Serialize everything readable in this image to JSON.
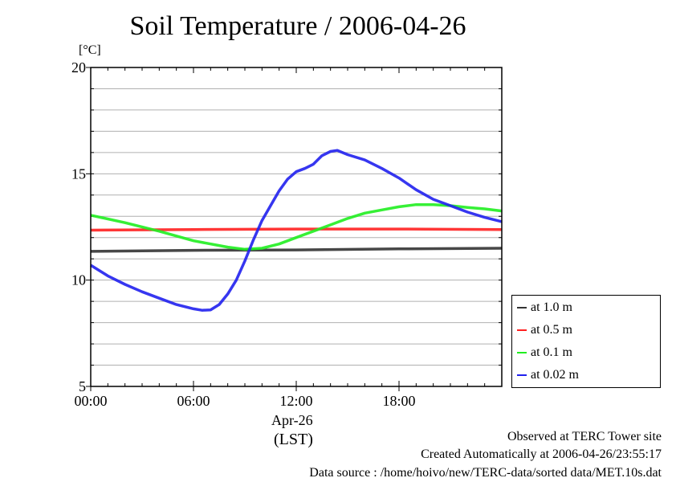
{
  "chart_data": {
    "type": "line",
    "title": "Soil Temperature / 2006-04-26",
    "ylabel": "[°C]",
    "xlabel": "(LST)",
    "date_label": "Apr-26",
    "xlim": [
      0,
      24
    ],
    "ylim": [
      5,
      20
    ],
    "x_ticks": [
      {
        "v": 0,
        "label": "00:00"
      },
      {
        "v": 6,
        "label": "06:00"
      },
      {
        "v": 12,
        "label": "12:00"
      },
      {
        "v": 18,
        "label": "18:00"
      }
    ],
    "y_ticks": [
      {
        "v": 5,
        "label": "5"
      },
      {
        "v": 10,
        "label": "10"
      },
      {
        "v": 15,
        "label": "15"
      },
      {
        "v": 20,
        "label": "20"
      }
    ],
    "grid": true,
    "legend_position": "right-bottom-outside",
    "series": [
      {
        "name": "at 1.0 m",
        "color": "#333333",
        "x": [
          0,
          6,
          12,
          18,
          24
        ],
        "y": [
          11.35,
          11.4,
          11.42,
          11.47,
          11.5
        ]
      },
      {
        "name": "at 0.5 m",
        "color": "#ff2020",
        "x": [
          0,
          6,
          12,
          18,
          24
        ],
        "y": [
          12.35,
          12.38,
          12.4,
          12.4,
          12.38
        ]
      },
      {
        "name": "at 0.1 m",
        "color": "#20ee20",
        "x": [
          0,
          2,
          4,
          6,
          8,
          9,
          10,
          11,
          12,
          13,
          14,
          15,
          16,
          17,
          18,
          19,
          20,
          21,
          22,
          23,
          24
        ],
        "y": [
          13.05,
          12.7,
          12.3,
          11.85,
          11.55,
          11.45,
          11.5,
          11.7,
          12.0,
          12.3,
          12.6,
          12.9,
          13.15,
          13.3,
          13.45,
          13.55,
          13.55,
          13.5,
          13.42,
          13.35,
          13.25
        ]
      },
      {
        "name": "at 0.02 m",
        "color": "#2020ee",
        "x": [
          0,
          1,
          2,
          3,
          4,
          5,
          6,
          6.5,
          7,
          7.5,
          8,
          8.5,
          9,
          9.5,
          10,
          10.5,
          11,
          11.5,
          12,
          12.5,
          13,
          13.5,
          14,
          14.4,
          15,
          16,
          17,
          18,
          19,
          20,
          21,
          22,
          23,
          24
        ],
        "y": [
          10.7,
          10.2,
          9.8,
          9.45,
          9.15,
          8.85,
          8.65,
          8.58,
          8.6,
          8.85,
          9.35,
          10.0,
          10.9,
          11.9,
          12.8,
          13.5,
          14.2,
          14.75,
          15.1,
          15.25,
          15.45,
          15.85,
          16.05,
          16.1,
          15.9,
          15.65,
          15.25,
          14.8,
          14.25,
          13.8,
          13.5,
          13.2,
          12.95,
          12.75
        ]
      }
    ]
  },
  "footer": {
    "observed": "Observed at TERC Tower site",
    "created": "Created Automatically at 2006-04-26/23:55:17",
    "source": "Data source : /home/hoivo/new/TERC-data/sorted  data/MET.10s.dat"
  }
}
